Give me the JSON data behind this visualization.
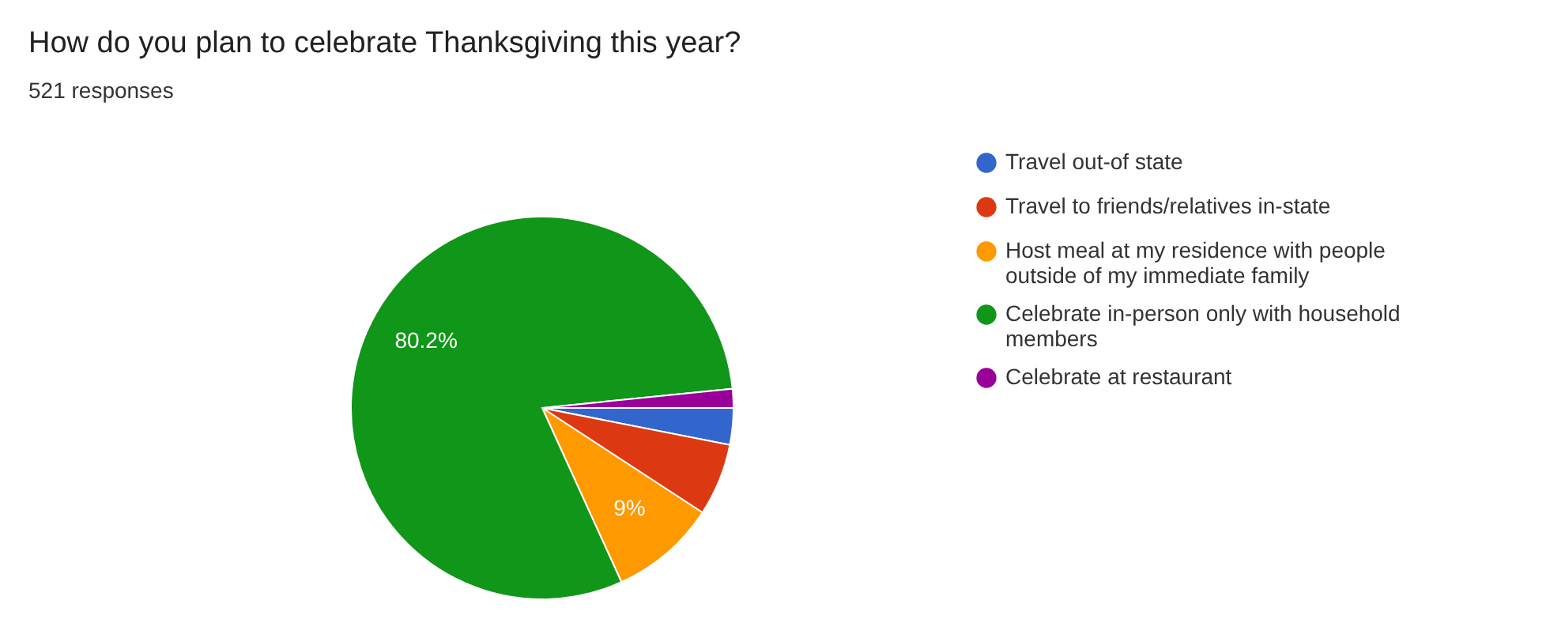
{
  "chart_data": {
    "type": "pie",
    "title": "How do you plan to celebrate Thanksgiving this year?",
    "subtitle": "521 responses",
    "categories": [
      "Travel out-of state",
      "Travel to friends/relatives in-state",
      "Host meal at my residence with people outside of my immediate family",
      "Celebrate in-person only with household members",
      "Celebrate at restaurant"
    ],
    "values": [
      3.1,
      6.1,
      9,
      80.2,
      1.6
    ],
    "colors": [
      "#3366cc",
      "#dc3912",
      "#ff9900",
      "#109618",
      "#990099"
    ],
    "value_labels": [
      null,
      null,
      "9%",
      "80.2%",
      null
    ],
    "legend": "right"
  }
}
